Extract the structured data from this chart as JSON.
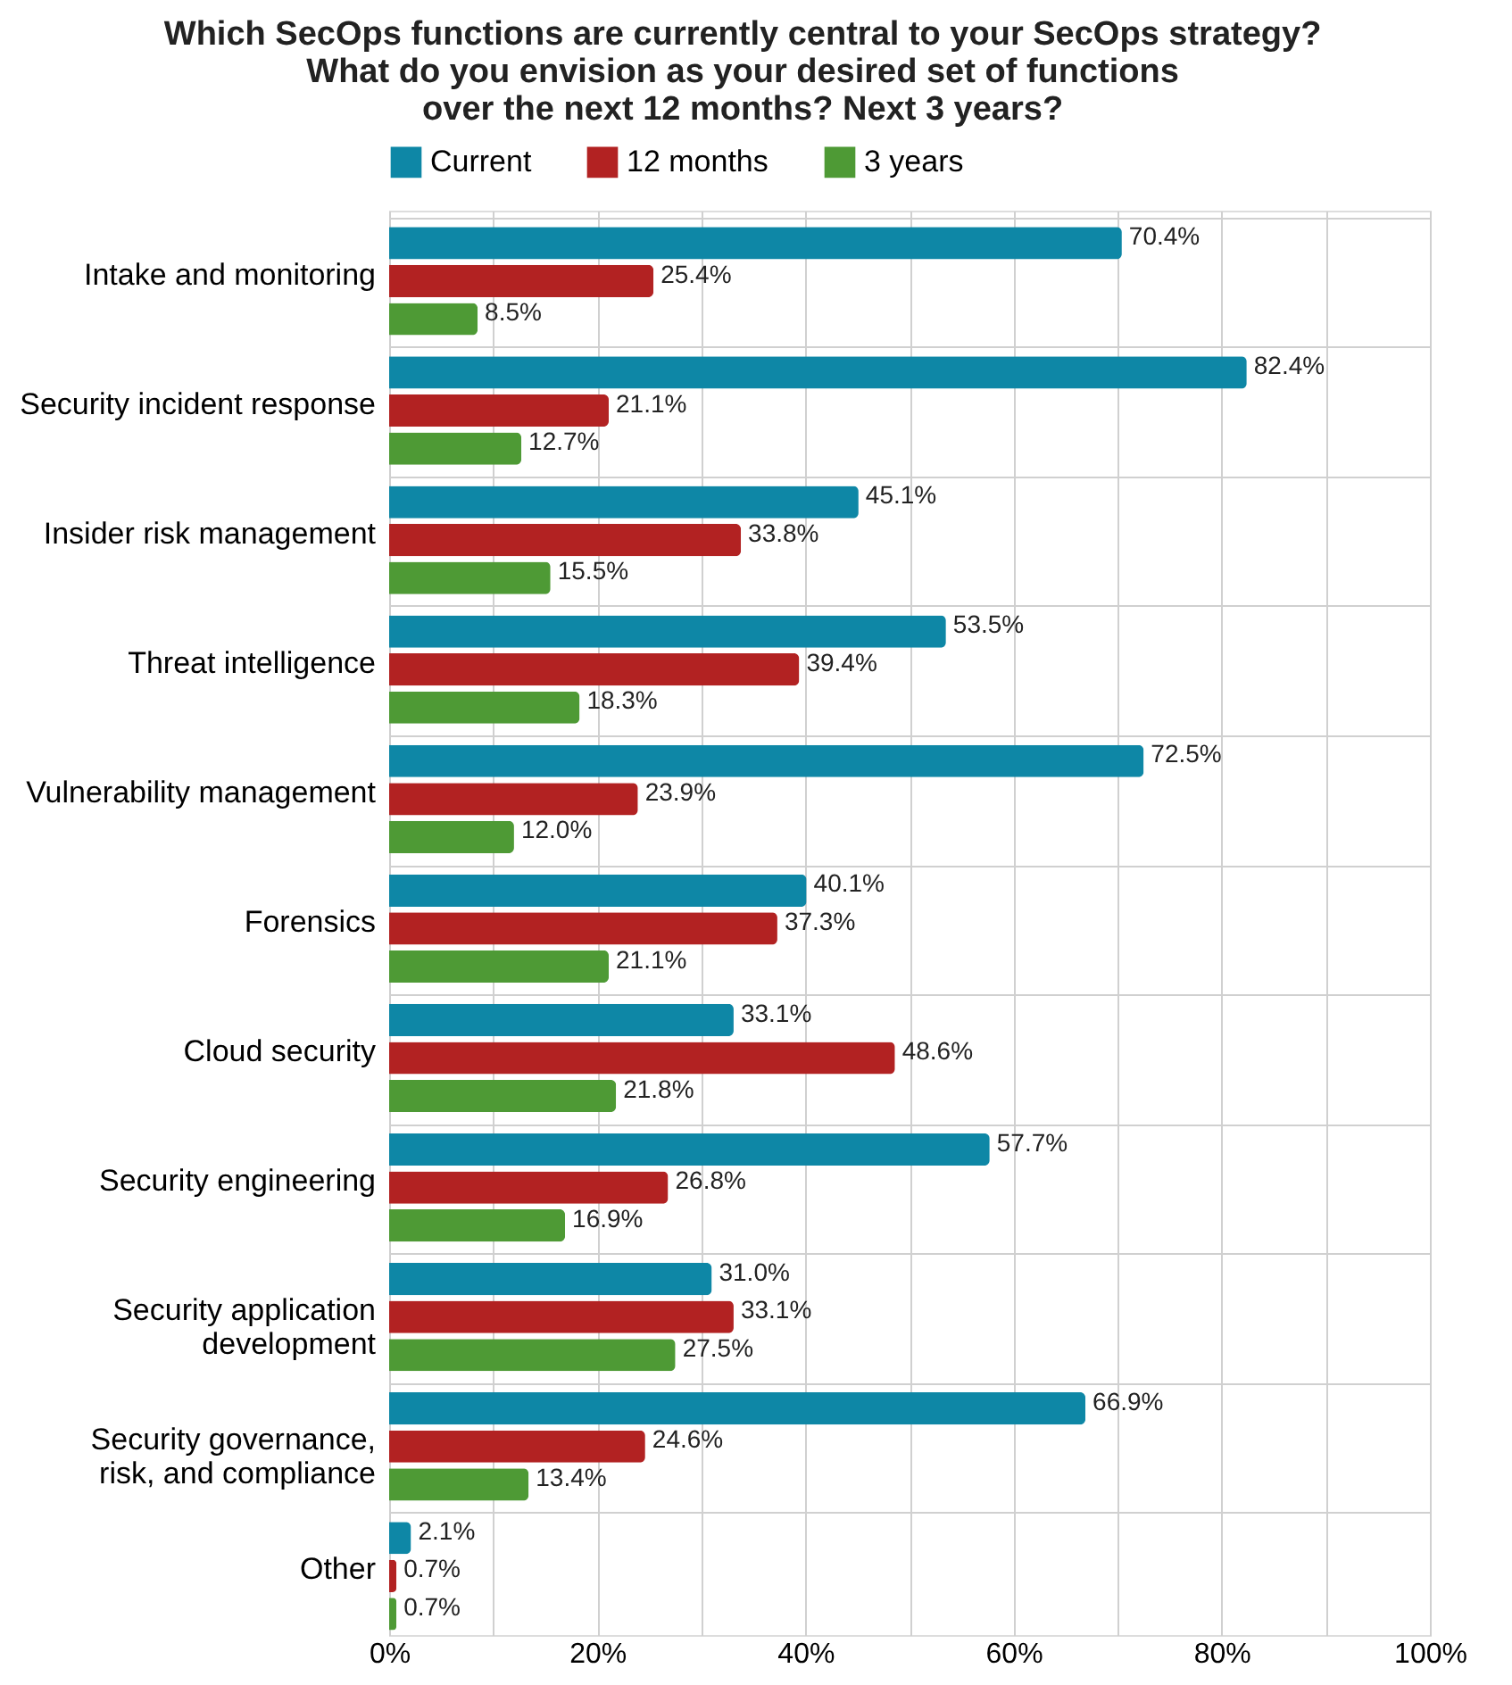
{
  "chart_data": {
    "type": "bar",
    "orientation": "horizontal",
    "title": [
      "Which SecOps functions are currently central to your SecOps strategy?",
      "What do you envision as your desired set of functions",
      "over the next 12 months? Next 3 years?"
    ],
    "categories": [
      "Intake and monitoring",
      "Security incident response",
      "Insider risk management",
      "Threat intelligence",
      "Vulnerability management",
      "Forensics",
      "Cloud security",
      "Security engineering",
      "Security application development",
      "Security governance, risk, and compliance",
      "Other"
    ],
    "series": [
      {
        "name": "Current",
        "color": "#0e87a6",
        "values": [
          70.4,
          82.4,
          45.1,
          53.5,
          72.5,
          40.1,
          33.1,
          57.7,
          31.0,
          66.9,
          2.1
        ],
        "value_labels": [
          "70.4%",
          "82.4%",
          "45.1%",
          "53.5%",
          "72.5%",
          "40.1%",
          "33.1%",
          "57.7%",
          "31.0%",
          "66.9%",
          "2.1%"
        ]
      },
      {
        "name": "12 months",
        "color": "#b22222",
        "values": [
          25.4,
          21.1,
          33.8,
          39.4,
          23.9,
          37.3,
          48.6,
          26.8,
          33.1,
          24.6,
          0.7
        ],
        "value_labels": [
          "25.4%",
          "21.1%",
          "33.8%",
          "39.4%",
          "23.9%",
          "37.3%",
          "48.6%",
          "26.8%",
          "33.1%",
          "24.6%",
          "0.7%"
        ]
      },
      {
        "name": "3 years",
        "color": "#4e9a35",
        "values": [
          8.5,
          12.7,
          15.5,
          18.3,
          12.0,
          21.1,
          21.8,
          16.9,
          27.5,
          13.4,
          0.7
        ],
        "value_labels": [
          "8.5%",
          "12.7%",
          "15.5%",
          "18.3%",
          "12.0%",
          "21.1%",
          "21.8%",
          "16.9%",
          "27.5%",
          "13.4%",
          "0.7%"
        ]
      }
    ],
    "xlim": [
      0,
      100
    ],
    "xticks": [
      {
        "value": 0,
        "label": "0%"
      },
      {
        "value": 10,
        "label": null
      },
      {
        "value": 20,
        "label": "20%"
      },
      {
        "value": 30,
        "label": null
      },
      {
        "value": 40,
        "label": "40%"
      },
      {
        "value": 50,
        "label": null
      },
      {
        "value": 60,
        "label": "60%"
      },
      {
        "value": 70,
        "label": null
      },
      {
        "value": 80,
        "label": "80%"
      },
      {
        "value": 90,
        "label": null
      },
      {
        "value": 100,
        "label": "100%"
      }
    ],
    "grid": true,
    "legend": "top"
  }
}
